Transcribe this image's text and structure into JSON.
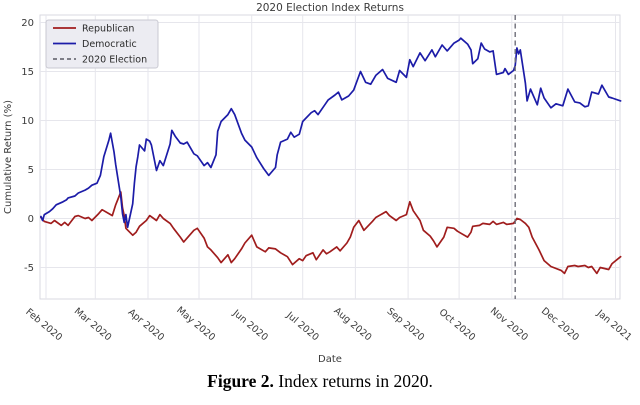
{
  "title": "2020 Election Index Returns",
  "caption": {
    "label": "Figure 2.",
    "text": " Index returns in 2020."
  },
  "axes": {
    "x_label": "Date",
    "y_label": "Cumulative Return (%)",
    "y_ticks": [
      20,
      15,
      10,
      5,
      0,
      -5
    ],
    "x_ticks": [
      {
        "label": "Feb 2020",
        "date": "2020-02-01"
      },
      {
        "label": "Mar 2020",
        "date": "2020-03-01"
      },
      {
        "label": "Apr 2020",
        "date": "2020-04-01"
      },
      {
        "label": "May 2020",
        "date": "2020-05-01"
      },
      {
        "label": "Jun 2020",
        "date": "2020-06-01"
      },
      {
        "label": "Jul 2020",
        "date": "2020-07-01"
      },
      {
        "label": "Aug 2020",
        "date": "2020-08-01"
      },
      {
        "label": "Sep 2020",
        "date": "2020-09-01"
      },
      {
        "label": "Oct 2020",
        "date": "2020-10-01"
      },
      {
        "label": "Nov 2020",
        "date": "2020-11-01"
      },
      {
        "label": "Dec 2020",
        "date": "2020-12-01"
      },
      {
        "label": "Jan 2021",
        "date": "2021-01-01"
      }
    ]
  },
  "legend": [
    {
      "label": "Republican",
      "color": "#A01D1D",
      "dash": ""
    },
    {
      "label": "Democratic",
      "color": "#1C1CA8",
      "dash": ""
    },
    {
      "label": "2020 Election",
      "color": "#6E6E78",
      "dash": "4,3"
    }
  ],
  "colors": {
    "republican": "#A01D1D",
    "democratic": "#1C1CA8",
    "election_line": "#6E6E78",
    "grid": "#E6E6EC",
    "spine": "#D9D9E0",
    "tick_text": "#3B3B3B",
    "legend_bg": "#ECECF2",
    "legend_border": "#C9C9D2"
  },
  "chart_data": {
    "type": "line",
    "title": "2020 Election Index Returns",
    "xlabel": "Date",
    "ylabel": "Cumulative Return (%)",
    "ylim": [
      -7.8,
      20.8
    ],
    "x_range": [
      "2020-01-29",
      "2021-01-04"
    ],
    "grid": true,
    "legend_position": "upper left",
    "annotations": [
      {
        "type": "vline",
        "label": "2020 Election",
        "date": "2020-11-03",
        "style": "dashed",
        "color": "#6E6E78"
      }
    ],
    "series": [
      {
        "name": "Republican",
        "color": "#A01D1D",
        "points": [
          [
            "2020-01-29",
            0.1
          ],
          [
            "2020-01-31",
            -0.3
          ],
          [
            "2020-02-04",
            -0.5
          ],
          [
            "2020-02-06",
            -0.2
          ],
          [
            "2020-02-10",
            -0.7
          ],
          [
            "2020-02-12",
            -0.4
          ],
          [
            "2020-02-14",
            -0.7
          ],
          [
            "2020-02-18",
            0.2
          ],
          [
            "2020-02-20",
            0.3
          ],
          [
            "2020-02-24",
            0.0
          ],
          [
            "2020-02-26",
            0.1
          ],
          [
            "2020-02-28",
            -0.2
          ],
          [
            "2020-03-03",
            0.5
          ],
          [
            "2020-03-05",
            0.9
          ],
          [
            "2020-03-09",
            0.5
          ],
          [
            "2020-03-11",
            0.3
          ],
          [
            "2020-03-13",
            1.4
          ],
          [
            "2020-03-16",
            2.7
          ],
          [
            "2020-03-17",
            1.1
          ],
          [
            "2020-03-18",
            0.3
          ],
          [
            "2020-03-19",
            -1.0
          ],
          [
            "2020-03-23",
            -1.7
          ],
          [
            "2020-03-25",
            -1.4
          ],
          [
            "2020-03-27",
            -0.8
          ],
          [
            "2020-03-31",
            -0.2
          ],
          [
            "2020-04-02",
            0.3
          ],
          [
            "2020-04-06",
            -0.2
          ],
          [
            "2020-04-08",
            0.4
          ],
          [
            "2020-04-10",
            0.0
          ],
          [
            "2020-04-14",
            -0.5
          ],
          [
            "2020-04-16",
            -1.0
          ],
          [
            "2020-04-20",
            -1.9
          ],
          [
            "2020-04-22",
            -2.4
          ],
          [
            "2020-04-24",
            -2.0
          ],
          [
            "2020-04-28",
            -1.2
          ],
          [
            "2020-04-30",
            -1.0
          ],
          [
            "2020-05-04",
            -2.0
          ],
          [
            "2020-05-06",
            -2.9
          ],
          [
            "2020-05-08",
            -3.2
          ],
          [
            "2020-05-12",
            -4.0
          ],
          [
            "2020-05-14",
            -4.5
          ],
          [
            "2020-05-18",
            -3.7
          ],
          [
            "2020-05-20",
            -4.5
          ],
          [
            "2020-05-22",
            -4.1
          ],
          [
            "2020-05-26",
            -3.1
          ],
          [
            "2020-05-28",
            -2.5
          ],
          [
            "2020-06-01",
            -1.7
          ],
          [
            "2020-06-04",
            -2.9
          ],
          [
            "2020-06-09",
            -3.4
          ],
          [
            "2020-06-11",
            -3.0
          ],
          [
            "2020-06-15",
            -3.1
          ],
          [
            "2020-06-18",
            -3.5
          ],
          [
            "2020-06-22",
            -3.9
          ],
          [
            "2020-06-25",
            -4.7
          ],
          [
            "2020-06-29",
            -4.1
          ],
          [
            "2020-07-01",
            -4.3
          ],
          [
            "2020-07-03",
            -3.8
          ],
          [
            "2020-07-07",
            -3.5
          ],
          [
            "2020-07-09",
            -4.2
          ],
          [
            "2020-07-13",
            -3.2
          ],
          [
            "2020-07-15",
            -3.6
          ],
          [
            "2020-07-17",
            -3.4
          ],
          [
            "2020-07-21",
            -2.9
          ],
          [
            "2020-07-23",
            -3.3
          ],
          [
            "2020-07-27",
            -2.5
          ],
          [
            "2020-07-29",
            -1.9
          ],
          [
            "2020-07-31",
            -0.9
          ],
          [
            "2020-08-03",
            -0.2
          ],
          [
            "2020-08-06",
            -1.2
          ],
          [
            "2020-08-11",
            -0.3
          ],
          [
            "2020-08-13",
            0.1
          ],
          [
            "2020-08-17",
            0.5
          ],
          [
            "2020-08-19",
            0.7
          ],
          [
            "2020-08-21",
            0.3
          ],
          [
            "2020-08-25",
            -0.2
          ],
          [
            "2020-08-27",
            0.1
          ],
          [
            "2020-08-31",
            0.4
          ],
          [
            "2020-09-02",
            1.7
          ],
          [
            "2020-09-04",
            0.8
          ],
          [
            "2020-09-08",
            -0.2
          ],
          [
            "2020-09-10",
            -1.2
          ],
          [
            "2020-09-14",
            -1.8
          ],
          [
            "2020-09-16",
            -2.3
          ],
          [
            "2020-09-18",
            -2.9
          ],
          [
            "2020-09-22",
            -1.9
          ],
          [
            "2020-09-24",
            -0.9
          ],
          [
            "2020-09-28",
            -1.0
          ],
          [
            "2020-09-30",
            -1.3
          ],
          [
            "2020-10-02",
            -1.5
          ],
          [
            "2020-10-06",
            -1.9
          ],
          [
            "2020-10-08",
            -1.4
          ],
          [
            "2020-10-09",
            -0.8
          ],
          [
            "2020-10-13",
            -0.7
          ],
          [
            "2020-10-15",
            -0.5
          ],
          [
            "2020-10-19",
            -0.6
          ],
          [
            "2020-10-21",
            -0.3
          ],
          [
            "2020-10-23",
            -0.6
          ],
          [
            "2020-10-27",
            -0.4
          ],
          [
            "2020-10-29",
            -0.6
          ],
          [
            "2020-11-02",
            -0.5
          ],
          [
            "2020-11-04",
            0.0
          ],
          [
            "2020-11-06",
            -0.1
          ],
          [
            "2020-11-09",
            -0.5
          ],
          [
            "2020-11-11",
            -0.9
          ],
          [
            "2020-11-13",
            -1.9
          ],
          [
            "2020-11-17",
            -3.2
          ],
          [
            "2020-11-20",
            -4.3
          ],
          [
            "2020-11-24",
            -4.9
          ],
          [
            "2020-11-30",
            -5.3
          ],
          [
            "2020-12-02",
            -5.6
          ],
          [
            "2020-12-04",
            -4.9
          ],
          [
            "2020-12-08",
            -4.8
          ],
          [
            "2020-12-10",
            -4.9
          ],
          [
            "2020-12-14",
            -4.8
          ],
          [
            "2020-12-16",
            -5.0
          ],
          [
            "2020-12-18",
            -4.9
          ],
          [
            "2020-12-21",
            -5.6
          ],
          [
            "2020-12-23",
            -5.0
          ],
          [
            "2020-12-28",
            -5.2
          ],
          [
            "2020-12-30",
            -4.6
          ],
          [
            "2021-01-04",
            -3.9
          ]
        ]
      },
      {
        "name": "Democratic",
        "color": "#1C1CA8",
        "points": [
          [
            "2020-01-29",
            0.2
          ],
          [
            "2020-01-30",
            -0.2
          ],
          [
            "2020-01-31",
            0.4
          ],
          [
            "2020-02-03",
            0.7
          ],
          [
            "2020-02-05",
            1.0
          ],
          [
            "2020-02-07",
            1.4
          ],
          [
            "2020-02-11",
            1.7
          ],
          [
            "2020-02-13",
            1.9
          ],
          [
            "2020-02-14",
            2.1
          ],
          [
            "2020-02-18",
            2.3
          ],
          [
            "2020-02-20",
            2.6
          ],
          [
            "2020-02-24",
            2.9
          ],
          [
            "2020-02-26",
            3.1
          ],
          [
            "2020-02-28",
            3.4
          ],
          [
            "2020-03-02",
            3.6
          ],
          [
            "2020-03-04",
            4.4
          ],
          [
            "2020-03-06",
            6.3
          ],
          [
            "2020-03-09",
            8.0
          ],
          [
            "2020-03-10",
            8.7
          ],
          [
            "2020-03-12",
            6.8
          ],
          [
            "2020-03-13",
            5.5
          ],
          [
            "2020-03-16",
            2.2
          ],
          [
            "2020-03-17",
            0.5
          ],
          [
            "2020-03-18",
            -0.4
          ],
          [
            "2020-03-19",
            0.4
          ],
          [
            "2020-03-20",
            -0.9
          ],
          [
            "2020-03-23",
            1.5
          ],
          [
            "2020-03-24",
            3.6
          ],
          [
            "2020-03-25",
            5.3
          ],
          [
            "2020-03-26",
            6.3
          ],
          [
            "2020-03-27",
            7.5
          ],
          [
            "2020-03-30",
            6.9
          ],
          [
            "2020-03-31",
            8.1
          ],
          [
            "2020-04-02",
            7.9
          ],
          [
            "2020-04-03",
            7.5
          ],
          [
            "2020-04-06",
            4.9
          ],
          [
            "2020-04-08",
            5.9
          ],
          [
            "2020-04-10",
            5.4
          ],
          [
            "2020-04-14",
            7.6
          ],
          [
            "2020-04-15",
            9.0
          ],
          [
            "2020-04-17",
            8.4
          ],
          [
            "2020-04-20",
            7.7
          ],
          [
            "2020-04-22",
            7.6
          ],
          [
            "2020-04-24",
            7.8
          ],
          [
            "2020-04-28",
            6.6
          ],
          [
            "2020-04-30",
            6.4
          ],
          [
            "2020-05-04",
            5.4
          ],
          [
            "2020-05-06",
            5.7
          ],
          [
            "2020-05-08",
            5.2
          ],
          [
            "2020-05-11",
            6.5
          ],
          [
            "2020-05-12",
            8.9
          ],
          [
            "2020-05-14",
            9.9
          ],
          [
            "2020-05-18",
            10.6
          ],
          [
            "2020-05-20",
            11.2
          ],
          [
            "2020-05-22",
            10.6
          ],
          [
            "2020-05-26",
            8.7
          ],
          [
            "2020-05-28",
            8.0
          ],
          [
            "2020-06-01",
            7.3
          ],
          [
            "2020-06-04",
            6.2
          ],
          [
            "2020-06-08",
            5.1
          ],
          [
            "2020-06-11",
            4.4
          ],
          [
            "2020-06-15",
            5.2
          ],
          [
            "2020-06-16",
            6.5
          ],
          [
            "2020-06-18",
            7.8
          ],
          [
            "2020-06-22",
            8.1
          ],
          [
            "2020-06-24",
            8.8
          ],
          [
            "2020-06-26",
            8.3
          ],
          [
            "2020-06-29",
            8.6
          ],
          [
            "2020-07-01",
            9.9
          ],
          [
            "2020-07-06",
            10.8
          ],
          [
            "2020-07-08",
            11.0
          ],
          [
            "2020-07-10",
            10.6
          ],
          [
            "2020-07-14",
            11.6
          ],
          [
            "2020-07-16",
            12.1
          ],
          [
            "2020-07-20",
            12.6
          ],
          [
            "2020-07-22",
            12.9
          ],
          [
            "2020-07-24",
            12.1
          ],
          [
            "2020-07-28",
            12.5
          ],
          [
            "2020-07-31",
            13.1
          ],
          [
            "2020-08-04",
            15.0
          ],
          [
            "2020-08-07",
            13.9
          ],
          [
            "2020-08-10",
            13.7
          ],
          [
            "2020-08-13",
            14.6
          ],
          [
            "2020-08-17",
            15.2
          ],
          [
            "2020-08-20",
            14.3
          ],
          [
            "2020-08-25",
            13.9
          ],
          [
            "2020-08-27",
            15.1
          ],
          [
            "2020-08-31",
            14.4
          ],
          [
            "2020-09-02",
            16.2
          ],
          [
            "2020-09-04",
            15.5
          ],
          [
            "2020-09-08",
            16.9
          ],
          [
            "2020-09-11",
            16.1
          ],
          [
            "2020-09-15",
            17.2
          ],
          [
            "2020-09-17",
            16.5
          ],
          [
            "2020-09-21",
            17.7
          ],
          [
            "2020-09-24",
            17.1
          ],
          [
            "2020-09-28",
            17.9
          ],
          [
            "2020-10-01",
            18.2
          ],
          [
            "2020-10-02",
            18.4
          ],
          [
            "2020-10-06",
            17.8
          ],
          [
            "2020-10-08",
            17.2
          ],
          [
            "2020-10-09",
            15.8
          ],
          [
            "2020-10-12",
            16.3
          ],
          [
            "2020-10-14",
            17.9
          ],
          [
            "2020-10-16",
            17.3
          ],
          [
            "2020-10-19",
            17.0
          ],
          [
            "2020-10-21",
            17.1
          ],
          [
            "2020-10-23",
            14.7
          ],
          [
            "2020-10-27",
            14.9
          ],
          [
            "2020-10-28",
            15.3
          ],
          [
            "2020-10-30",
            14.7
          ],
          [
            "2020-11-02",
            15.1
          ],
          [
            "2020-11-03",
            15.6
          ],
          [
            "2020-11-04",
            17.4
          ],
          [
            "2020-11-05",
            16.8
          ],
          [
            "2020-11-06",
            17.2
          ],
          [
            "2020-11-09",
            13.8
          ],
          [
            "2020-11-10",
            12.0
          ],
          [
            "2020-11-12",
            13.2
          ],
          [
            "2020-11-16",
            11.6
          ],
          [
            "2020-11-18",
            13.3
          ],
          [
            "2020-11-20",
            12.3
          ],
          [
            "2020-11-24",
            11.3
          ],
          [
            "2020-11-27",
            11.7
          ],
          [
            "2020-12-01",
            11.5
          ],
          [
            "2020-12-04",
            13.2
          ],
          [
            "2020-12-08",
            11.9
          ],
          [
            "2020-12-11",
            11.8
          ],
          [
            "2020-12-14",
            11.4
          ],
          [
            "2020-12-16",
            11.5
          ],
          [
            "2020-12-18",
            12.9
          ],
          [
            "2020-12-22",
            12.7
          ],
          [
            "2020-12-24",
            13.6
          ],
          [
            "2020-12-28",
            12.4
          ],
          [
            "2020-12-30",
            12.3
          ],
          [
            "2021-01-04",
            12.0
          ]
        ]
      }
    ]
  }
}
